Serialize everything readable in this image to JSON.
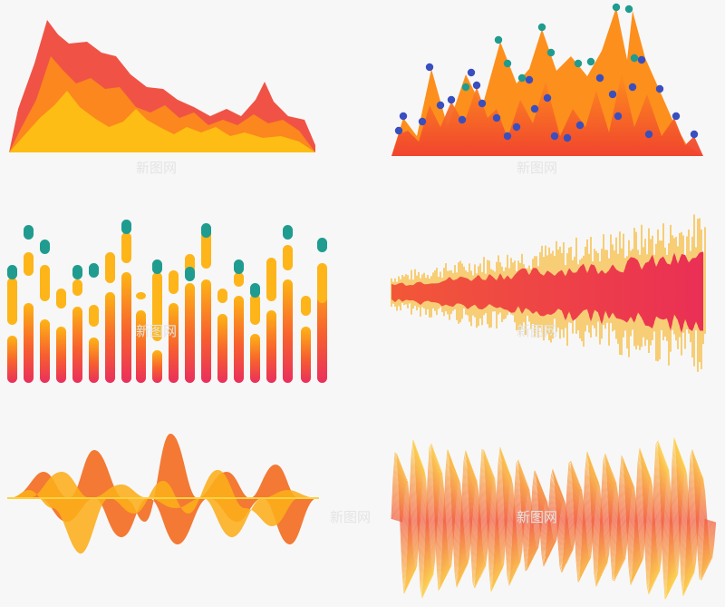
{
  "watermark": "新图网",
  "colors": {
    "background": "#f7f7f7",
    "red": "#ef4a3c",
    "orange": "#fb8a1c",
    "amber": "#fda91e",
    "yellow": "#fdc40f",
    "pink": "#ea2f5c",
    "dot_blue": "#3a4fbf",
    "dot_teal": "#1f9c8f"
  }
}
